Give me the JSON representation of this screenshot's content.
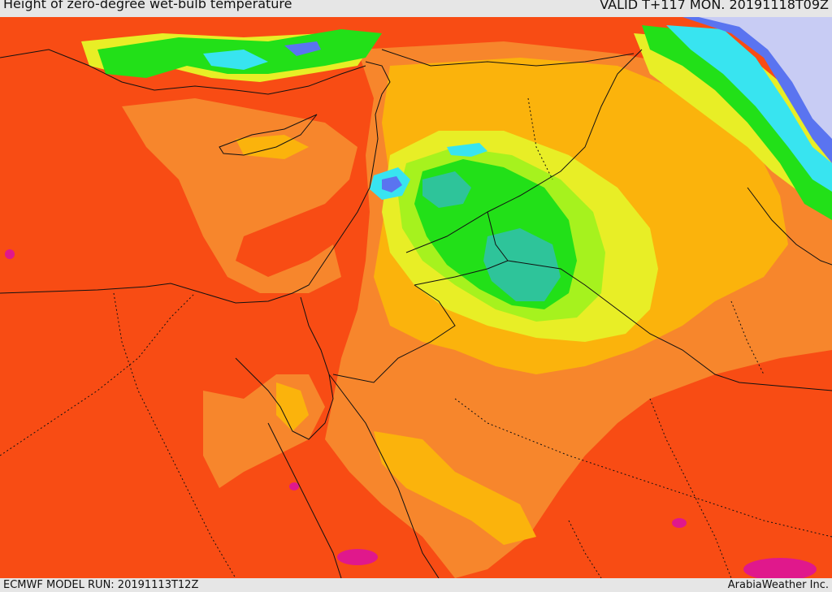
{
  "header": {
    "title": "Height of zero-degree wet-bulb temperature",
    "valid": "VALID T+117 MON. 20191118T09Z"
  },
  "footer": {
    "model_run": "ECMWF MODEL RUN: 20191113T12Z",
    "credit": "ArabiaWeather Inc."
  },
  "colors": {
    "red_orange": "#f84c14",
    "orange": "#f7862c",
    "amber": "#fbb30c",
    "yellow": "#e8ee26",
    "yellow_green": "#a6f21e",
    "green": "#22e018",
    "teal": "#2ec49a",
    "cyan": "#38e4f0",
    "blue": "#5a74f0",
    "lavender": "#c8ccf4",
    "magenta": "#e0188c",
    "border": "#111111"
  }
}
